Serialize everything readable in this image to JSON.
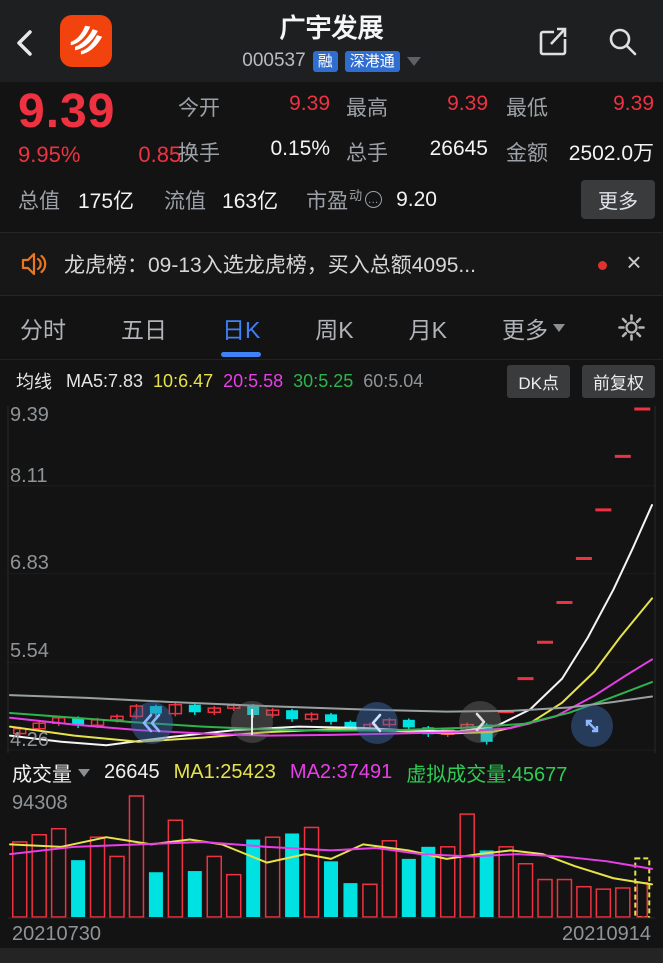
{
  "colors": {
    "red": "#ef3241",
    "cyan": "#00e2e2",
    "yellow": "#e6e24b",
    "magenta": "#e83ee8",
    "green": "#2db44e",
    "blue": "#3f82f7"
  },
  "header": {
    "title": "广宇发展",
    "code": "000537",
    "badge1": "融",
    "badge2": "深港通"
  },
  "quote": {
    "price": "9.39",
    "pct": "9.95%",
    "chg": "0.85",
    "s": [
      {
        "label": "今开",
        "value": "9.39",
        "color": "red"
      },
      {
        "label": "最高",
        "value": "9.39",
        "color": "red"
      },
      {
        "label": "最低",
        "value": "9.39",
        "color": "red"
      },
      {
        "label": "换手",
        "value": "0.15%",
        "color": "white"
      },
      {
        "label": "总手",
        "value": "26645",
        "color": "white"
      },
      {
        "label": "金额",
        "value": "2502.0万",
        "color": "white"
      }
    ],
    "cap_l": "总值",
    "cap_v": "175亿",
    "flo_l": "流值",
    "flo_v": "163亿",
    "pe_l": "市盈",
    "pe_sup": "动",
    "pe_ico": "…",
    "pe_v": "9.20",
    "more": "更多"
  },
  "ticker": {
    "text": "龙虎榜：09-13入选龙虎榜，买入总额4095...",
    "close": "×"
  },
  "tabs": {
    "t0": "分时",
    "t1": "五日",
    "t2": "日K",
    "t3": "周K",
    "t4": "月K",
    "more": "更多"
  },
  "ma_bar": {
    "t": "均线",
    "m5": "MA5:7.83",
    "m10": "10:6.47",
    "m20": "20:5.58",
    "m30": "30:5.25",
    "m60": "60:5.04",
    "dk": "DK点",
    "adj": "前复权"
  },
  "yaxis": {
    "t0": "9.39",
    "t1": "8.11",
    "t2": "6.83",
    "t3": "5.54",
    "t4": "4.26"
  },
  "vol_bar": {
    "name": "成交量",
    "cur": "26645",
    "ma1": "MA1:25423",
    "ma2": "MA2:37491",
    "virt": "虚拟成交量:45677",
    "max": "94308"
  },
  "dates": {
    "l": "20210730",
    "r": "20210914"
  },
  "chart_data": {
    "type": "candlestick",
    "period": "日K",
    "price_axis": {
      "ylim": [
        4.26,
        9.39
      ],
      "ticks": [
        9.39,
        8.11,
        6.83,
        5.54,
        4.26
      ]
    },
    "date_start": "20210730",
    "date_end": "20210914",
    "candles": [
      {
        "o": 4.5,
        "h": 4.6,
        "l": 4.46,
        "c": 4.57,
        "t": "u"
      },
      {
        "o": 4.57,
        "h": 4.68,
        "l": 4.53,
        "c": 4.65,
        "t": "u"
      },
      {
        "o": 4.65,
        "h": 4.76,
        "l": 4.61,
        "c": 4.73,
        "t": "u"
      },
      {
        "o": 4.73,
        "h": 4.75,
        "l": 4.58,
        "c": 4.62,
        "t": "d"
      },
      {
        "o": 4.62,
        "h": 4.73,
        "l": 4.58,
        "c": 4.7,
        "t": "u"
      },
      {
        "o": 4.7,
        "h": 4.78,
        "l": 4.66,
        "c": 4.75,
        "t": "u"
      },
      {
        "o": 4.75,
        "h": 4.93,
        "l": 4.71,
        "c": 4.9,
        "t": "u"
      },
      {
        "o": 4.9,
        "h": 4.92,
        "l": 4.75,
        "c": 4.79,
        "t": "d"
      },
      {
        "o": 4.79,
        "h": 4.95,
        "l": 4.75,
        "c": 4.92,
        "t": "u"
      },
      {
        "o": 4.92,
        "h": 4.94,
        "l": 4.77,
        "c": 4.81,
        "t": "d"
      },
      {
        "o": 4.81,
        "h": 4.9,
        "l": 4.77,
        "c": 4.87,
        "t": "u"
      },
      {
        "o": 4.87,
        "h": 4.94,
        "l": 4.83,
        "c": 4.91,
        "t": "u"
      },
      {
        "o": 4.91,
        "h": 4.93,
        "l": 4.73,
        "c": 4.77,
        "t": "d"
      },
      {
        "o": 4.77,
        "h": 4.87,
        "l": 4.73,
        "c": 4.84,
        "t": "u"
      },
      {
        "o": 4.84,
        "h": 4.86,
        "l": 4.67,
        "c": 4.71,
        "t": "d"
      },
      {
        "o": 4.71,
        "h": 4.81,
        "l": 4.67,
        "c": 4.78,
        "t": "u"
      },
      {
        "o": 4.78,
        "h": 4.8,
        "l": 4.63,
        "c": 4.67,
        "t": "d"
      },
      {
        "o": 4.67,
        "h": 4.69,
        "l": 4.54,
        "c": 4.58,
        "t": "d"
      },
      {
        "o": 4.58,
        "h": 4.66,
        "l": 4.54,
        "c": 4.63,
        "t": "u"
      },
      {
        "o": 4.63,
        "h": 4.73,
        "l": 4.59,
        "c": 4.7,
        "t": "u"
      },
      {
        "o": 4.7,
        "h": 4.72,
        "l": 4.55,
        "c": 4.59,
        "t": "d"
      },
      {
        "o": 4.59,
        "h": 4.61,
        "l": 4.45,
        "c": 4.49,
        "t": "d"
      },
      {
        "o": 4.49,
        "h": 4.58,
        "l": 4.45,
        "c": 4.55,
        "t": "u"
      },
      {
        "o": 4.55,
        "h": 4.66,
        "l": 4.51,
        "c": 4.63,
        "t": "u"
      },
      {
        "o": 4.63,
        "h": 4.65,
        "l": 4.34,
        "c": 4.38,
        "t": "d"
      },
      {
        "o": 4.82,
        "h": 4.82,
        "l": 4.82,
        "c": 4.82,
        "t": "L"
      },
      {
        "o": 5.3,
        "h": 5.3,
        "l": 5.3,
        "c": 5.3,
        "t": "L"
      },
      {
        "o": 5.83,
        "h": 5.83,
        "l": 5.83,
        "c": 5.83,
        "t": "L"
      },
      {
        "o": 6.41,
        "h": 6.41,
        "l": 6.41,
        "c": 6.41,
        "t": "L"
      },
      {
        "o": 7.05,
        "h": 7.05,
        "l": 7.05,
        "c": 7.05,
        "t": "L"
      },
      {
        "o": 7.76,
        "h": 7.76,
        "l": 7.76,
        "c": 7.76,
        "t": "L"
      },
      {
        "o": 8.54,
        "h": 8.54,
        "l": 8.54,
        "c": 8.54,
        "t": "L"
      },
      {
        "o": 9.39,
        "h": 9.39,
        "l": 9.39,
        "c": 9.39,
        "t": "L"
      }
    ],
    "ma_lines": [
      {
        "name": "MA5",
        "color": "#f5f5f5",
        "points": [
          [
            0,
            4.47
          ],
          [
            0.08,
            4.38
          ],
          [
            0.15,
            4.33
          ],
          [
            0.25,
            4.45
          ],
          [
            0.35,
            4.55
          ],
          [
            0.45,
            4.6
          ],
          [
            0.55,
            4.58
          ],
          [
            0.63,
            4.54
          ],
          [
            0.7,
            4.53
          ],
          [
            0.76,
            4.62
          ],
          [
            0.81,
            4.85
          ],
          [
            0.86,
            5.3
          ],
          [
            0.9,
            5.9
          ],
          [
            0.94,
            6.6
          ],
          [
            0.97,
            7.2
          ],
          [
            1,
            7.83
          ]
        ]
      },
      {
        "name": "MA10",
        "color": "#e6e24b",
        "points": [
          [
            0,
            4.6
          ],
          [
            0.1,
            4.47
          ],
          [
            0.2,
            4.38
          ],
          [
            0.3,
            4.44
          ],
          [
            0.4,
            4.52
          ],
          [
            0.5,
            4.56
          ],
          [
            0.6,
            4.54
          ],
          [
            0.68,
            4.5
          ],
          [
            0.75,
            4.52
          ],
          [
            0.81,
            4.65
          ],
          [
            0.86,
            4.95
          ],
          [
            0.91,
            5.4
          ],
          [
            0.95,
            5.9
          ],
          [
            1,
            6.47
          ]
        ]
      },
      {
        "name": "MA20",
        "color": "#e83ee8",
        "points": [
          [
            0,
            4.73
          ],
          [
            0.1,
            4.63
          ],
          [
            0.2,
            4.55
          ],
          [
            0.3,
            4.5
          ],
          [
            0.4,
            4.47
          ],
          [
            0.5,
            4.48
          ],
          [
            0.6,
            4.5
          ],
          [
            0.7,
            4.52
          ],
          [
            0.78,
            4.58
          ],
          [
            0.85,
            4.75
          ],
          [
            0.91,
            5.05
          ],
          [
            0.96,
            5.35
          ],
          [
            1,
            5.58
          ]
        ]
      },
      {
        "name": "MA30",
        "color": "#2db44e",
        "points": [
          [
            0,
            4.8
          ],
          [
            0.1,
            4.73
          ],
          [
            0.2,
            4.66
          ],
          [
            0.3,
            4.6
          ],
          [
            0.4,
            4.56
          ],
          [
            0.5,
            4.54
          ],
          [
            0.6,
            4.55
          ],
          [
            0.7,
            4.58
          ],
          [
            0.8,
            4.64
          ],
          [
            0.87,
            4.8
          ],
          [
            0.93,
            5.0
          ],
          [
            1,
            5.25
          ]
        ]
      },
      {
        "name": "MA60",
        "color": "#9aa0a2",
        "points": [
          [
            0,
            5.06
          ],
          [
            0.12,
            5.02
          ],
          [
            0.25,
            4.96
          ],
          [
            0.4,
            4.9
          ],
          [
            0.55,
            4.85
          ],
          [
            0.68,
            4.82
          ],
          [
            0.78,
            4.83
          ],
          [
            0.87,
            4.88
          ],
          [
            0.94,
            4.96
          ],
          [
            1,
            5.04
          ]
        ]
      }
    ],
    "volume": {
      "max": 94308,
      "bars": [
        {
          "v": 58500,
          "t": "u"
        },
        {
          "v": 64100,
          "t": "u"
        },
        {
          "v": 68800,
          "t": "u"
        },
        {
          "v": 44300,
          "t": "d"
        },
        {
          "v": 62200,
          "t": "u"
        },
        {
          "v": 47200,
          "t": "u"
        },
        {
          "v": 94308,
          "t": "u"
        },
        {
          "v": 34900,
          "t": "d"
        },
        {
          "v": 75400,
          "t": "u"
        },
        {
          "v": 35800,
          "t": "d"
        },
        {
          "v": 47200,
          "t": "u"
        },
        {
          "v": 33000,
          "t": "u"
        },
        {
          "v": 60400,
          "t": "d"
        },
        {
          "v": 62200,
          "t": "u"
        },
        {
          "v": 65100,
          "t": "d"
        },
        {
          "v": 69800,
          "t": "u"
        },
        {
          "v": 43400,
          "t": "d"
        },
        {
          "v": 26400,
          "t": "d"
        },
        {
          "v": 25500,
          "t": "u"
        },
        {
          "v": 59400,
          "t": "u"
        },
        {
          "v": 45300,
          "t": "d"
        },
        {
          "v": 54700,
          "t": "d"
        },
        {
          "v": 54700,
          "t": "u"
        },
        {
          "v": 80200,
          "t": "u"
        },
        {
          "v": 51900,
          "t": "d"
        },
        {
          "v": 54700,
          "t": "u"
        },
        {
          "v": 41500,
          "t": "u"
        },
        {
          "v": 29200,
          "t": "u"
        },
        {
          "v": 29200,
          "t": "u"
        },
        {
          "v": 23600,
          "t": "u"
        },
        {
          "v": 21700,
          "t": "u"
        },
        {
          "v": 22600,
          "t": "u"
        },
        {
          "v": 26645,
          "t": "cur"
        }
      ]
    },
    "volume_ma": [
      {
        "name": "MA1",
        "color": "#e6e24b",
        "points": [
          [
            0,
            56600
          ],
          [
            0.08,
            54700
          ],
          [
            0.15,
            62200
          ],
          [
            0.22,
            56600
          ],
          [
            0.28,
            60400
          ],
          [
            0.33,
            56600
          ],
          [
            0.4,
            42400
          ],
          [
            0.46,
            49000
          ],
          [
            0.5,
            45300
          ],
          [
            0.55,
            56600
          ],
          [
            0.62,
            51900
          ],
          [
            0.68,
            45300
          ],
          [
            0.73,
            49000
          ],
          [
            0.78,
            51900
          ],
          [
            0.83,
            49000
          ],
          [
            0.88,
            39600
          ],
          [
            0.94,
            30200
          ],
          [
            1,
            25423
          ]
        ]
      },
      {
        "name": "MA2",
        "color": "#e83ee8",
        "points": [
          [
            0,
            49000
          ],
          [
            0.1,
            54700
          ],
          [
            0.2,
            56600
          ],
          [
            0.3,
            58500
          ],
          [
            0.4,
            54700
          ],
          [
            0.5,
            51900
          ],
          [
            0.57,
            53800
          ],
          [
            0.64,
            49000
          ],
          [
            0.72,
            47200
          ],
          [
            0.79,
            49000
          ],
          [
            0.86,
            47200
          ],
          [
            0.93,
            43400
          ],
          [
            1,
            37491
          ]
        ]
      }
    ],
    "virtual_volume": 45677
  }
}
